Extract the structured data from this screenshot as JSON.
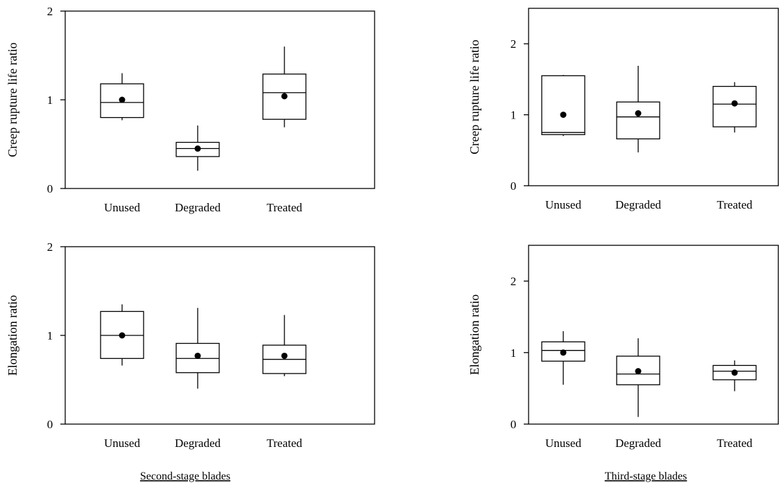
{
  "chart_data": [
    {
      "type": "box",
      "group": "Second-stage blades",
      "ylabel": "Creep rupture life ratio",
      "ylim": [
        0,
        2
      ],
      "yticks": [
        0,
        1,
        2
      ],
      "categories": [
        "Unused",
        "Degraded",
        "Treated"
      ],
      "boxes": [
        {
          "category": "Unused",
          "min": 0.77,
          "q1": 0.8,
          "median": 0.97,
          "q3": 1.18,
          "max": 1.3,
          "mean": 1.0
        },
        {
          "category": "Degraded",
          "min": 0.2,
          "q1": 0.36,
          "median": 0.45,
          "q3": 0.52,
          "max": 0.71,
          "mean": 0.45
        },
        {
          "category": "Treated",
          "min": 0.69,
          "q1": 0.78,
          "median": 1.08,
          "q3": 1.29,
          "max": 1.6,
          "mean": 1.04
        }
      ]
    },
    {
      "type": "box",
      "group": "Third-stage blades",
      "ylabel": "Creep rupture life ratio",
      "ylim": [
        0,
        2.5
      ],
      "yticks": [
        0,
        1,
        2
      ],
      "categories": [
        "Unused",
        "Degraded",
        "Treated"
      ],
      "boxes": [
        {
          "category": "Unused",
          "min": 0.7,
          "q1": 0.72,
          "median": 0.75,
          "q3": 1.55,
          "max": 1.56,
          "mean": 1.0
        },
        {
          "category": "Degraded",
          "min": 0.47,
          "q1": 0.66,
          "median": 0.97,
          "q3": 1.18,
          "max": 1.69,
          "mean": 1.02
        },
        {
          "category": "Treated",
          "min": 0.75,
          "q1": 0.83,
          "median": 1.15,
          "q3": 1.4,
          "max": 1.46,
          "mean": 1.16
        }
      ]
    },
    {
      "type": "box",
      "group": "Second-stage blades",
      "ylabel": "Elongation ratio",
      "ylim": [
        0,
        2
      ],
      "yticks": [
        0,
        1,
        2
      ],
      "categories": [
        "Unused",
        "Degraded",
        "Treated"
      ],
      "boxes": [
        {
          "category": "Unused",
          "min": 0.66,
          "q1": 0.74,
          "median": 1.0,
          "q3": 1.27,
          "max": 1.35,
          "mean": 1.0
        },
        {
          "category": "Degraded",
          "min": 0.4,
          "q1": 0.58,
          "median": 0.74,
          "q3": 0.91,
          "max": 1.31,
          "mean": 0.77
        },
        {
          "category": "Treated",
          "min": 0.54,
          "q1": 0.57,
          "median": 0.73,
          "q3": 0.89,
          "max": 1.23,
          "mean": 0.77
        }
      ]
    },
    {
      "type": "box",
      "group": "Third-stage blades",
      "ylabel": "Elongation ratio",
      "ylim": [
        0,
        2.5
      ],
      "yticks": [
        0,
        1,
        2
      ],
      "categories": [
        "Unused",
        "Degraded",
        "Treated"
      ],
      "boxes": [
        {
          "category": "Unused",
          "min": 0.55,
          "q1": 0.88,
          "median": 1.03,
          "q3": 1.15,
          "max": 1.3,
          "mean": 1.0
        },
        {
          "category": "Degraded",
          "min": 0.1,
          "q1": 0.55,
          "median": 0.7,
          "q3": 0.95,
          "max": 1.2,
          "mean": 0.74
        },
        {
          "category": "Treated",
          "min": 0.46,
          "q1": 0.62,
          "median": 0.74,
          "q3": 0.82,
          "max": 0.89,
          "mean": 0.72
        }
      ]
    }
  ],
  "captions": {
    "left": "Second-stage blades",
    "right": "Third-stage blades"
  }
}
